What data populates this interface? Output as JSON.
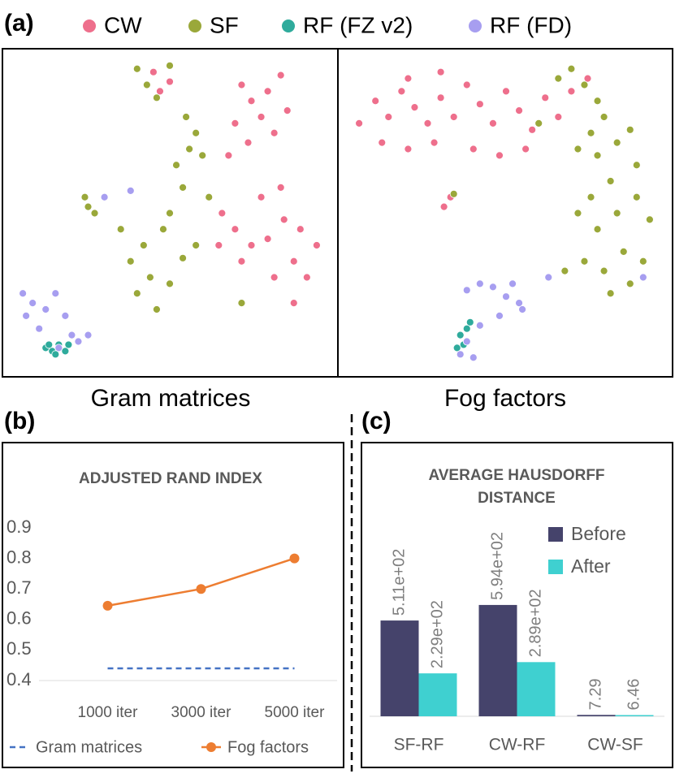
{
  "chart_data": [
    {
      "type": "scatter",
      "label": "(a)",
      "title": "Gram matrices",
      "xlim": [
        0,
        100
      ],
      "ylim": [
        0,
        100
      ],
      "series": [
        {
          "name": "CW",
          "color": "#ee6f8c",
          "x": [
            72,
            75,
            80,
            84,
            78,
            70,
            74,
            82,
            86,
            68,
            66,
            70,
            75,
            80,
            85,
            90,
            95,
            88,
            82,
            92,
            78,
            84,
            72,
            65,
            88,
            45,
            50,
            47
          ],
          "y": [
            90,
            85,
            88,
            93,
            80,
            78,
            72,
            75,
            82,
            68,
            50,
            45,
            40,
            42,
            48,
            45,
            40,
            35,
            30,
            30,
            55,
            58,
            35,
            40,
            22,
            94,
            91,
            88
          ]
        },
        {
          "name": "SF",
          "color": "#9aa83a",
          "x": [
            40,
            43,
            46,
            50,
            55,
            58,
            56,
            52,
            60,
            54,
            50,
            48,
            42,
            38,
            44,
            50,
            40,
            46,
            54,
            35,
            25,
            27,
            24,
            62,
            72,
            58
          ],
          "y": [
            95,
            90,
            86,
            96,
            80,
            75,
            70,
            65,
            68,
            58,
            50,
            45,
            40,
            35,
            30,
            28,
            25,
            20,
            36,
            45,
            52,
            50,
            55,
            55,
            22,
            40
          ]
        },
        {
          "name": "RF (FZ v2)",
          "color": "#2fab9c",
          "x": [
            12,
            14,
            16,
            18,
            15,
            13,
            19
          ],
          "y": [
            8,
            7,
            9,
            7,
            6,
            9,
            9
          ]
        },
        {
          "name": "RF (FD)",
          "color": "#a79ef0",
          "x": [
            5,
            8,
            12,
            15,
            18,
            20,
            22,
            10,
            6,
            16,
            25,
            30,
            38
          ],
          "y": [
            25,
            22,
            20,
            25,
            18,
            12,
            10,
            14,
            18,
            8,
            12,
            55,
            57
          ]
        }
      ]
    },
    {
      "type": "scatter",
      "title": "Fog factors",
      "xlim": [
        0,
        100
      ],
      "ylim": [
        0,
        100
      ],
      "series": [
        {
          "color": "#ee6f8c",
          "x": [
            5,
            10,
            14,
            18,
            22,
            26,
            30,
            34,
            38,
            42,
            46,
            50,
            54,
            58,
            62,
            66,
            12,
            20,
            28,
            40,
            48,
            56,
            70,
            30,
            20,
            75,
            31,
            33
          ],
          "y": [
            78,
            85,
            80,
            88,
            83,
            78,
            86,
            80,
            90,
            84,
            78,
            88,
            82,
            76,
            86,
            80,
            72,
            70,
            72,
            70,
            68,
            70,
            88,
            94,
            92,
            92,
            52,
            55
          ]
        },
        {
          "color": "#9aa83a",
          "x": [
            66,
            70,
            74,
            78,
            80,
            76,
            72,
            78,
            84,
            88,
            90,
            82,
            76,
            72,
            78,
            84,
            90,
            94,
            86,
            80,
            74,
            68,
            82,
            88,
            92,
            60,
            34
          ],
          "y": [
            92,
            95,
            90,
            85,
            80,
            75,
            70,
            68,
            72,
            76,
            65,
            60,
            55,
            50,
            45,
            50,
            55,
            48,
            38,
            32,
            35,
            32,
            25,
            28,
            35,
            78,
            56
          ]
        },
        {
          "color": "#2fab9c",
          "x": [
            36,
            38,
            37,
            39,
            35
          ],
          "y": [
            12,
            14,
            9,
            16,
            8
          ]
        },
        {
          "color": "#a79ef0",
          "x": [
            38,
            42,
            46,
            50,
            54,
            48,
            42,
            38,
            36,
            40,
            52,
            55,
            63,
            92
          ],
          "y": [
            26,
            28,
            27,
            24,
            22,
            18,
            15,
            10,
            6,
            5,
            28,
            20,
            30,
            30
          ]
        }
      ]
    },
    {
      "type": "line",
      "label": "(b)",
      "title": "ADJUSTED RAND INDEX",
      "categories": [
        "1000 iter",
        "3000 iter",
        "5000 iter"
      ],
      "ylim": [
        0.4,
        0.9
      ],
      "yticks": [
        {
          "value": 0.4,
          "label": "0.4"
        },
        {
          "value": 0.5,
          "label": "0.5"
        },
        {
          "value": 0.6,
          "label": "0.6"
        },
        {
          "value": 0.7,
          "label": "0.7"
        },
        {
          "value": 0.8,
          "label": "0.8"
        },
        {
          "value": 0.9,
          "label": "0.9"
        }
      ],
      "legend": "bottom",
      "series": [
        {
          "name": "Gram matrices",
          "color": "#4472c4",
          "dashed": true,
          "values": [
            0.44,
            0.44,
            0.44
          ]
        },
        {
          "name": "Fog factors",
          "color": "#ed7d31",
          "markers": true,
          "values": [
            0.645,
            0.7,
            0.8
          ]
        }
      ]
    },
    {
      "type": "bar",
      "label": "(c)",
      "title": "AVERAGE HAUSDORFF DISTANCE",
      "categories": [
        "SF-RF",
        "CW-RF",
        "CW-SF"
      ],
      "ylim": [
        0,
        650
      ],
      "legend": "top-right",
      "series": [
        {
          "name": "Before",
          "color": "#45436b",
          "values": [
            511,
            594,
            7.29
          ],
          "value_labels": [
            "5.11e+02",
            "5.94e+02",
            "7.29"
          ]
        },
        {
          "name": "After",
          "color": "#3fd0d0",
          "values": [
            229,
            289,
            6.46
          ],
          "value_labels": [
            "2.29e+02",
            "2.89e+02",
            "6.46"
          ]
        }
      ]
    }
  ]
}
